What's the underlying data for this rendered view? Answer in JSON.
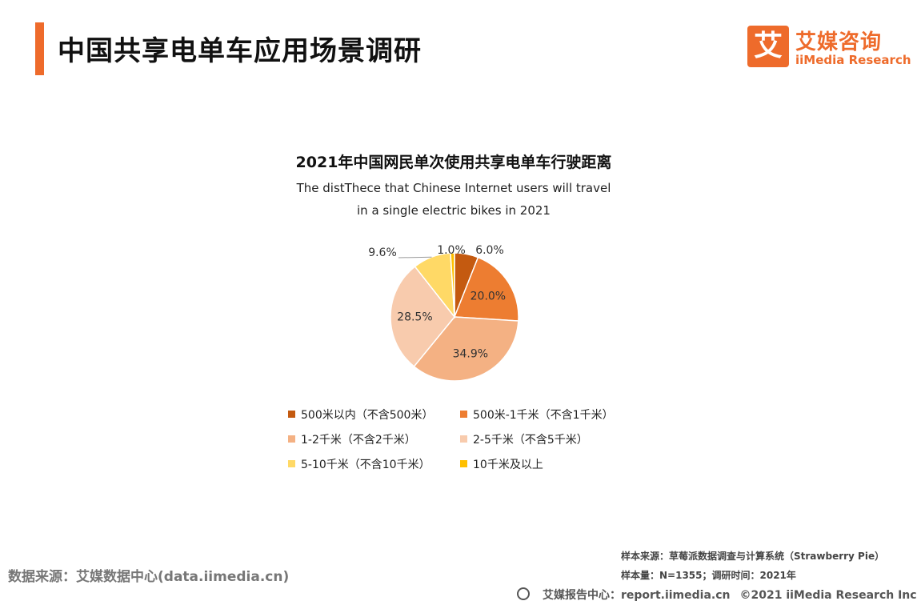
{
  "header": {
    "title": "中国共享电单车应用场景调研",
    "accent_color": "#ee6b2b"
  },
  "logo": {
    "mark": "艾",
    "name_cn": "艾媒咨询",
    "name_en": "iiMedia Research"
  },
  "chart_data": {
    "type": "pie",
    "title": "2021年中国网民单次使用共享电单车行驶距离",
    "subtitle_lines": [
      "The distThece that Chinese Internet users will travel",
      "in a single electric bikes in 2021"
    ],
    "slices": [
      {
        "label": "500米以内（不含500米）",
        "value": 6.0,
        "display": "6.0%",
        "color": "#c45a10"
      },
      {
        "label": "500米-1千米（不含1千米）",
        "value": 20.0,
        "display": "20.0%",
        "color": "#ed7d31"
      },
      {
        "label": "1-2千米（不含2千米）",
        "value": 34.9,
        "display": "34.9%",
        "color": "#f4b183"
      },
      {
        "label": "2-5千米（不含5千米）",
        "value": 28.5,
        "display": "28.5%",
        "color": "#f8cbad"
      },
      {
        "label": "5-10千米（不含10千米）",
        "value": 9.6,
        "display": "9.6%",
        "color": "#ffd966"
      },
      {
        "label": "10千米及以上",
        "value": 1.0,
        "display": "1.0%",
        "color": "#ffc000"
      }
    ],
    "legend_placement": "bottom"
  },
  "footer": {
    "source": "数据来源：艾媒数据中心(data.iimedia.cn)",
    "sample_source": "样本来源：草莓派数据调查与计算系统（Strawberry Pie）",
    "sample_size": "样本量：N=1355；调研时间：2021年",
    "report_center": "艾媒报告中心：report.iimedia.cn",
    "copyright": "©2021  iiMedia Research  Inc"
  }
}
